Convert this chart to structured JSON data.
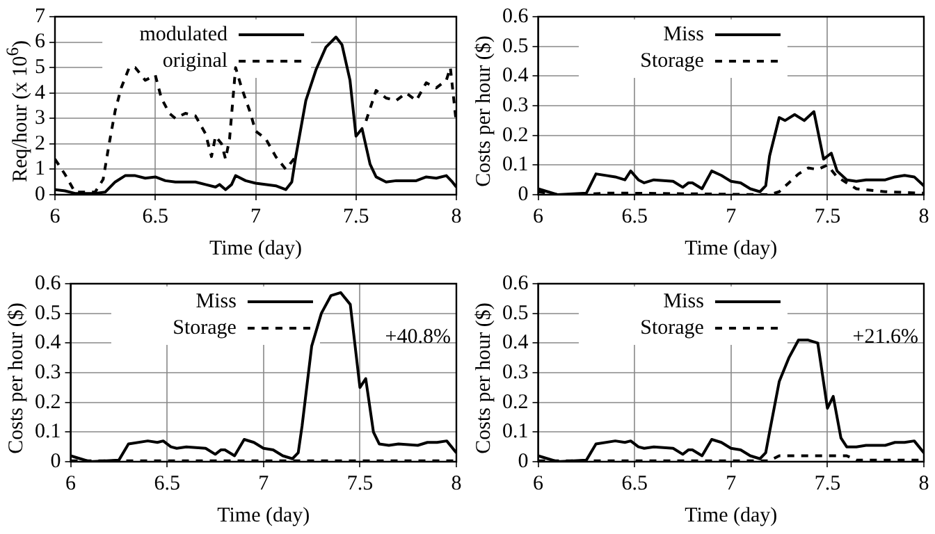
{
  "chart_data": [
    {
      "type": "line",
      "xlabel": "Time (day)",
      "ylabel": "Req/hour (x 10$^{6}$)",
      "xlim": [
        6,
        8
      ],
      "xticks": [
        6,
        6.5,
        7,
        7.5,
        8
      ],
      "ylim": [
        0,
        7
      ],
      "yticks": [
        0,
        1,
        2,
        3,
        4,
        5,
        6,
        7
      ],
      "grid": true,
      "legend": "top",
      "series": [
        {
          "name": "modulated",
          "color": "#000000",
          "line_style": "solid",
          "x": [
            6,
            6.05,
            6.1,
            6.2,
            6.25,
            6.3,
            6.35,
            6.4,
            6.45,
            6.5,
            6.55,
            6.6,
            6.7,
            6.75,
            6.8,
            6.82,
            6.85,
            6.88,
            6.9,
            6.95,
            7,
            7.1,
            7.15,
            7.18,
            7.2,
            7.25,
            7.3,
            7.35,
            7.4,
            7.43,
            7.47,
            7.5,
            7.53,
            7.57,
            7.6,
            7.65,
            7.7,
            7.8,
            7.85,
            7.9,
            7.95,
            7.98,
            8
          ],
          "values": [
            0.2,
            0.15,
            0.05,
            0.05,
            0.1,
            0.5,
            0.75,
            0.75,
            0.65,
            0.7,
            0.55,
            0.5,
            0.5,
            0.4,
            0.3,
            0.4,
            0.2,
            0.4,
            0.75,
            0.55,
            0.45,
            0.35,
            0.2,
            0.5,
            1.5,
            3.7,
            4.9,
            5.8,
            6.2,
            5.9,
            4.5,
            2.3,
            2.6,
            1.2,
            0.7,
            0.5,
            0.55,
            0.55,
            0.7,
            0.65,
            0.75,
            0.5,
            0.3
          ]
        },
        {
          "name": "original",
          "color": "#000000",
          "line_style": "dashed",
          "x": [
            6,
            6.05,
            6.1,
            6.15,
            6.2,
            6.24,
            6.27,
            6.3,
            6.33,
            6.37,
            6.4,
            6.45,
            6.5,
            6.53,
            6.57,
            6.6,
            6.65,
            6.7,
            6.75,
            6.78,
            6.8,
            6.83,
            6.85,
            6.87,
            6.9,
            6.93,
            6.97,
            7,
            7.05,
            7.1,
            7.15,
            7.2,
            7.25,
            7.55,
            7.6,
            7.65,
            7.7,
            7.75,
            7.8,
            7.85,
            7.9,
            7.95,
            7.97,
            8
          ],
          "values": [
            1.4,
            0.8,
            0.1,
            0.1,
            0.1,
            0.6,
            2,
            3.3,
            4.2,
            5,
            5,
            4.5,
            4.7,
            3.8,
            3.2,
            3,
            3.2,
            3.1,
            2.4,
            1.5,
            2.3,
            2,
            1.4,
            2.2,
            5,
            4.2,
            3.3,
            2.5,
            2.2,
            1.5,
            1,
            1.5,
            null,
            2.9,
            4.1,
            3.8,
            3.7,
            4,
            3.7,
            4.4,
            4.2,
            4.5,
            5,
            2.8
          ]
        }
      ]
    },
    {
      "type": "line",
      "xlabel": "Time (day)",
      "ylabel": "Costs per hour ($)",
      "xlim": [
        6,
        8
      ],
      "xticks": [
        6,
        6.5,
        7,
        7.5,
        8
      ],
      "ylim": [
        0,
        0.6
      ],
      "yticks": [
        0,
        0.1,
        0.2,
        0.3,
        0.4,
        0.5,
        0.6
      ],
      "grid": true,
      "legend": "top",
      "series": [
        {
          "name": "Miss",
          "color": "#000000",
          "line_style": "solid",
          "x": [
            6,
            6.05,
            6.1,
            6.25,
            6.3,
            6.4,
            6.45,
            6.48,
            6.52,
            6.55,
            6.6,
            6.7,
            6.75,
            6.78,
            6.8,
            6.85,
            6.9,
            6.95,
            7,
            7.05,
            7.1,
            7.15,
            7.18,
            7.2,
            7.25,
            7.28,
            7.33,
            7.38,
            7.43,
            7.48,
            7.52,
            7.55,
            7.6,
            7.65,
            7.7,
            7.8,
            7.85,
            7.9,
            7.95,
            8
          ],
          "values": [
            0.02,
            0.01,
            0,
            0.005,
            0.07,
            0.06,
            0.05,
            0.08,
            0.05,
            0.04,
            0.05,
            0.045,
            0.025,
            0.04,
            0.04,
            0.02,
            0.08,
            0.065,
            0.045,
            0.04,
            0.02,
            0.01,
            0.03,
            0.13,
            0.26,
            0.25,
            0.27,
            0.25,
            0.28,
            0.12,
            0.14,
            0.08,
            0.05,
            0.045,
            0.05,
            0.05,
            0.06,
            0.065,
            0.06,
            0.03
          ]
        },
        {
          "name": "Storage",
          "color": "#000000",
          "line_style": "dashed",
          "x": [
            6,
            6.1,
            6.2,
            6.35,
            6.5,
            7.2,
            7.25,
            7.3,
            7.35,
            7.4,
            7.45,
            7.5,
            7.55,
            7.6,
            7.65,
            7.8,
            8
          ],
          "values": [
            0.01,
            0,
            0,
            0.005,
            0.005,
            0,
            0.01,
            0.04,
            0.07,
            0.09,
            0.085,
            0.1,
            0.06,
            0.04,
            0.02,
            0.01,
            0.005
          ]
        }
      ]
    },
    {
      "type": "line",
      "xlabel": "Time (day)",
      "ylabel": "Costs per hour ($)",
      "xlim": [
        6,
        8
      ],
      "xticks": [
        6,
        6.5,
        7,
        7.5,
        8
      ],
      "ylim": [
        0,
        0.6
      ],
      "yticks": [
        0,
        0.1,
        0.2,
        0.3,
        0.4,
        0.5,
        0.6
      ],
      "grid": true,
      "legend": "top",
      "annotations": [
        "+40.8%"
      ],
      "series": [
        {
          "name": "Miss",
          "color": "#000000",
          "line_style": "solid",
          "x": [
            6,
            6.05,
            6.1,
            6.25,
            6.3,
            6.4,
            6.45,
            6.48,
            6.52,
            6.55,
            6.6,
            6.7,
            6.75,
            6.78,
            6.8,
            6.85,
            6.9,
            6.95,
            7,
            7.05,
            7.1,
            7.15,
            7.18,
            7.2,
            7.25,
            7.3,
            7.35,
            7.4,
            7.45,
            7.5,
            7.53,
            7.57,
            7.6,
            7.65,
            7.7,
            7.8,
            7.85,
            7.9,
            7.95,
            8
          ],
          "values": [
            0.02,
            0.01,
            0,
            0.005,
            0.06,
            0.07,
            0.065,
            0.07,
            0.05,
            0.045,
            0.05,
            0.045,
            0.025,
            0.04,
            0.04,
            0.02,
            0.075,
            0.065,
            0.045,
            0.04,
            0.02,
            0.01,
            0.03,
            0.12,
            0.39,
            0.5,
            0.56,
            0.57,
            0.53,
            0.25,
            0.28,
            0.1,
            0.06,
            0.055,
            0.06,
            0.055,
            0.065,
            0.065,
            0.07,
            0.03
          ]
        },
        {
          "name": "Storage",
          "color": "#000000",
          "line_style": "dashed",
          "x": [
            6,
            6.5,
            7,
            7.5,
            8
          ],
          "values": [
            0.003,
            0.003,
            0.003,
            0.003,
            0.003
          ]
        }
      ]
    },
    {
      "type": "line",
      "xlabel": "Time (day)",
      "ylabel": "Costs per hour ($)",
      "xlim": [
        6,
        8
      ],
      "xticks": [
        6,
        6.5,
        7,
        7.5,
        8
      ],
      "ylim": [
        0,
        0.6
      ],
      "yticks": [
        0,
        0.1,
        0.2,
        0.3,
        0.4,
        0.5,
        0.6
      ],
      "grid": true,
      "legend": "top",
      "annotations": [
        "+21.6%"
      ],
      "series": [
        {
          "name": "Miss",
          "color": "#000000",
          "line_style": "solid",
          "x": [
            6,
            6.05,
            6.1,
            6.25,
            6.3,
            6.4,
            6.45,
            6.48,
            6.52,
            6.55,
            6.6,
            6.7,
            6.75,
            6.78,
            6.8,
            6.85,
            6.9,
            6.95,
            7,
            7.05,
            7.1,
            7.15,
            7.18,
            7.2,
            7.25,
            7.3,
            7.35,
            7.4,
            7.45,
            7.5,
            7.53,
            7.57,
            7.6,
            7.65,
            7.7,
            7.8,
            7.85,
            7.9,
            7.95,
            8
          ],
          "values": [
            0.02,
            0.01,
            0,
            0.005,
            0.06,
            0.07,
            0.065,
            0.07,
            0.05,
            0.045,
            0.05,
            0.045,
            0.025,
            0.04,
            0.04,
            0.02,
            0.075,
            0.065,
            0.045,
            0.04,
            0.02,
            0.01,
            0.03,
            0.1,
            0.27,
            0.35,
            0.41,
            0.41,
            0.4,
            0.18,
            0.22,
            0.08,
            0.05,
            0.05,
            0.055,
            0.055,
            0.065,
            0.065,
            0.07,
            0.03
          ]
        },
        {
          "name": "Storage",
          "color": "#000000",
          "line_style": "dashed",
          "x": [
            6,
            7.2,
            7.25,
            7.6,
            7.65,
            8
          ],
          "values": [
            0.003,
            0.003,
            0.02,
            0.02,
            0.005,
            0.005
          ]
        }
      ]
    }
  ]
}
